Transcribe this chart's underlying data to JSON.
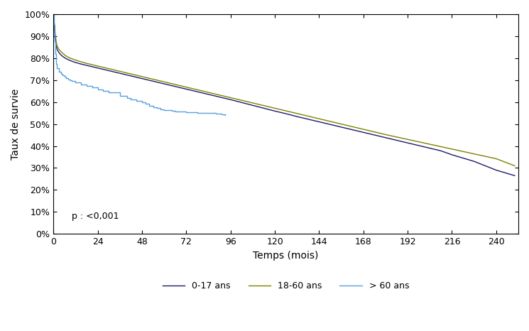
{
  "title": "",
  "xlabel": "Temps (mois)",
  "ylabel": "Taux de survie",
  "xlim": [
    0,
    252
  ],
  "ylim": [
    0,
    1.0
  ],
  "xticks": [
    0,
    24,
    48,
    72,
    96,
    120,
    144,
    168,
    192,
    216,
    240
  ],
  "yticks": [
    0,
    0.1,
    0.2,
    0.3,
    0.4,
    0.5,
    0.6,
    0.7,
    0.8,
    0.9,
    1.0
  ],
  "pvalue_text": "p : <0,001",
  "legend_labels": [
    "0-17 ans",
    "18-60 ans",
    "> 60 ans"
  ],
  "colors": {
    "group1": "#1a1a6e",
    "group2": "#808000",
    "group3": "#5aa0e0"
  },
  "curve1_x": [
    0,
    0.3,
    0.5,
    1,
    1.5,
    2,
    3,
    4,
    5,
    6,
    7,
    8,
    10,
    12,
    15,
    18,
    21,
    24,
    27,
    30,
    33,
    36,
    39,
    42,
    45,
    48,
    54,
    60,
    66,
    72,
    78,
    84,
    90,
    96,
    102,
    108,
    114,
    120,
    126,
    132,
    138,
    144,
    150,
    156,
    162,
    168,
    174,
    180,
    186,
    192,
    198,
    204,
    210,
    216,
    222,
    228,
    234,
    240,
    246,
    250
  ],
  "curve1_y": [
    1.0,
    0.97,
    0.94,
    0.88,
    0.855,
    0.84,
    0.825,
    0.815,
    0.808,
    0.802,
    0.797,
    0.793,
    0.786,
    0.78,
    0.773,
    0.767,
    0.761,
    0.755,
    0.749,
    0.743,
    0.737,
    0.731,
    0.725,
    0.719,
    0.713,
    0.707,
    0.695,
    0.683,
    0.671,
    0.659,
    0.647,
    0.635,
    0.623,
    0.611,
    0.598,
    0.585,
    0.572,
    0.559,
    0.547,
    0.534,
    0.522,
    0.51,
    0.498,
    0.486,
    0.474,
    0.462,
    0.45,
    0.438,
    0.426,
    0.414,
    0.402,
    0.39,
    0.378,
    0.36,
    0.345,
    0.33,
    0.31,
    0.29,
    0.275,
    0.265
  ],
  "curve2_x": [
    0,
    0.3,
    0.5,
    1,
    1.5,
    2,
    3,
    4,
    5,
    6,
    7,
    8,
    10,
    12,
    15,
    18,
    21,
    24,
    27,
    30,
    33,
    36,
    39,
    42,
    45,
    48,
    54,
    60,
    66,
    72,
    78,
    84,
    90,
    96,
    102,
    108,
    114,
    120,
    126,
    132,
    138,
    144,
    150,
    156,
    162,
    168,
    174,
    180,
    192,
    204,
    216,
    228,
    240,
    250
  ],
  "curve2_y": [
    1.0,
    0.975,
    0.955,
    0.905,
    0.875,
    0.855,
    0.84,
    0.83,
    0.822,
    0.815,
    0.809,
    0.804,
    0.797,
    0.791,
    0.783,
    0.776,
    0.77,
    0.764,
    0.758,
    0.752,
    0.746,
    0.74,
    0.734,
    0.728,
    0.722,
    0.716,
    0.704,
    0.692,
    0.68,
    0.668,
    0.656,
    0.644,
    0.632,
    0.62,
    0.608,
    0.596,
    0.584,
    0.572,
    0.56,
    0.548,
    0.536,
    0.524,
    0.512,
    0.5,
    0.488,
    0.476,
    0.464,
    0.452,
    0.43,
    0.408,
    0.386,
    0.364,
    0.342,
    0.31
  ],
  "curve3_x": [
    0,
    0.3,
    0.5,
    1,
    1.5,
    2,
    3,
    4,
    5,
    6,
    7,
    8,
    9,
    10,
    12,
    15,
    18,
    21,
    24,
    27,
    30,
    36,
    40,
    42,
    45,
    48,
    50,
    52,
    54,
    56,
    58,
    60,
    62,
    64,
    66,
    68,
    70,
    72,
    74,
    76,
    78,
    80,
    82,
    84,
    88,
    91,
    93
  ],
  "curve3_y": [
    1.0,
    0.95,
    0.905,
    0.82,
    0.775,
    0.755,
    0.738,
    0.728,
    0.721,
    0.714,
    0.709,
    0.704,
    0.7,
    0.696,
    0.689,
    0.681,
    0.673,
    0.666,
    0.658,
    0.651,
    0.643,
    0.628,
    0.617,
    0.612,
    0.607,
    0.598,
    0.591,
    0.584,
    0.577,
    0.572,
    0.568,
    0.565,
    0.563,
    0.56,
    0.558,
    0.557,
    0.556,
    0.555,
    0.554,
    0.553,
    0.552,
    0.551,
    0.55,
    0.549,
    0.547,
    0.545,
    0.54
  ]
}
